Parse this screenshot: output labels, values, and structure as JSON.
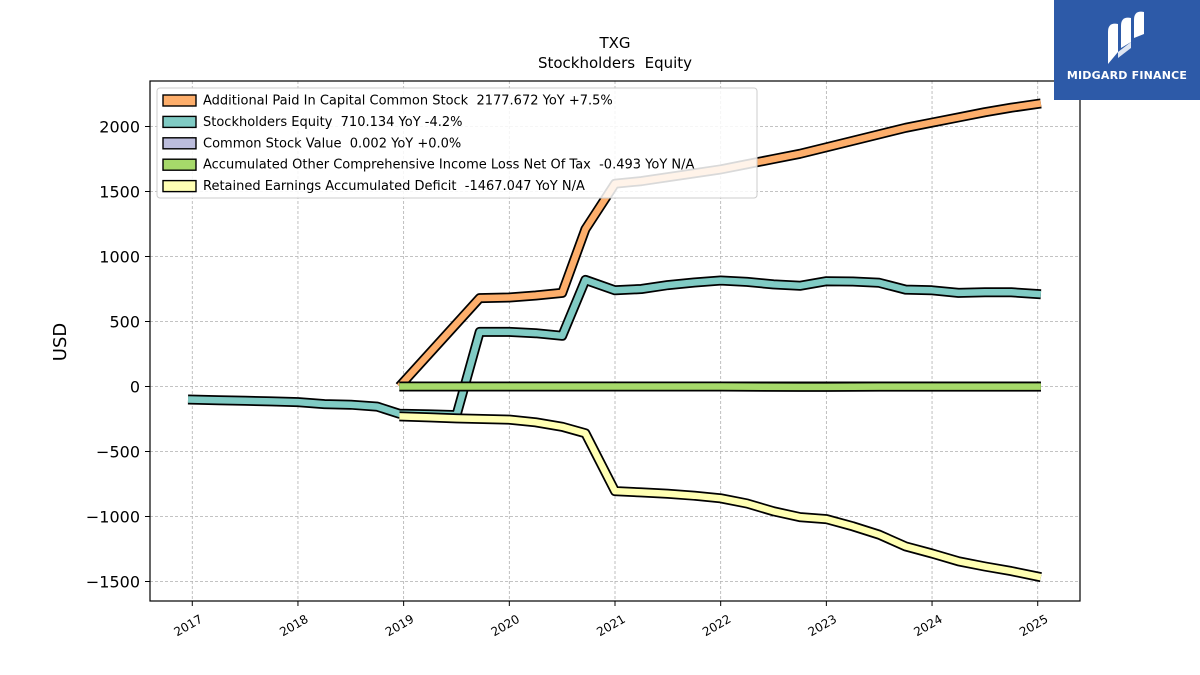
{
  "chart_data": {
    "type": "line",
    "title": "TXG",
    "subtitle": "Stockholders  Equity",
    "ylabel": "USD",
    "xlabel": "",
    "xlim": [
      2016.6,
      2025.4
    ],
    "ylim": [
      -1650,
      2350
    ],
    "x_ticks": [
      "2017",
      "2018",
      "2019",
      "2020",
      "2021",
      "2022",
      "2023",
      "2024",
      "2025"
    ],
    "y_ticks": [
      2000,
      1500,
      1000,
      500,
      0,
      -500,
      -1000,
      -1500
    ],
    "y_tick_labels": [
      "2000",
      "1500",
      "1000",
      "500",
      "0",
      "−500",
      "−1000",
      "−1500"
    ],
    "grid": true,
    "legend_position": "upper-left",
    "series": [
      {
        "name": "Additional Paid In Capital Common Stock  2177.672 YoY +7.5%",
        "color": "#fdae6b",
        "points": [
          [
            2018.96,
            0
          ],
          [
            2019.72,
            680
          ],
          [
            2020.0,
            685
          ],
          [
            2020.25,
            700
          ],
          [
            2020.5,
            720
          ],
          [
            2020.72,
            1210
          ],
          [
            2021.0,
            1560
          ],
          [
            2021.25,
            1580
          ],
          [
            2021.5,
            1610
          ],
          [
            2021.75,
            1640
          ],
          [
            2022.0,
            1670
          ],
          [
            2022.25,
            1710
          ],
          [
            2022.5,
            1750
          ],
          [
            2022.75,
            1790
          ],
          [
            2023.0,
            1840
          ],
          [
            2023.25,
            1890
          ],
          [
            2023.5,
            1940
          ],
          [
            2023.75,
            1990
          ],
          [
            2024.0,
            2030
          ],
          [
            2024.25,
            2070
          ],
          [
            2024.5,
            2110
          ],
          [
            2024.75,
            2145
          ],
          [
            2025.03,
            2177.672
          ]
        ]
      },
      {
        "name": "Stockholders Equity  710.134 YoY -4.2%",
        "color": "#80cbc4",
        "points": [
          [
            2016.96,
            -100
          ],
          [
            2017.25,
            -105
          ],
          [
            2017.5,
            -110
          ],
          [
            2017.75,
            -115
          ],
          [
            2018.0,
            -120
          ],
          [
            2018.25,
            -135
          ],
          [
            2018.5,
            -140
          ],
          [
            2018.75,
            -155
          ],
          [
            2018.96,
            -210
          ],
          [
            2019.25,
            -215
          ],
          [
            2019.5,
            -220
          ],
          [
            2019.72,
            420
          ],
          [
            2020.0,
            420
          ],
          [
            2020.25,
            410
          ],
          [
            2020.5,
            390
          ],
          [
            2020.72,
            820
          ],
          [
            2021.0,
            740
          ],
          [
            2021.25,
            750
          ],
          [
            2021.5,
            780
          ],
          [
            2021.75,
            800
          ],
          [
            2022.0,
            815
          ],
          [
            2022.25,
            805
          ],
          [
            2022.5,
            785
          ],
          [
            2022.75,
            775
          ],
          [
            2023.0,
            810
          ],
          [
            2023.25,
            808
          ],
          [
            2023.5,
            798
          ],
          [
            2023.75,
            745
          ],
          [
            2024.0,
            740
          ],
          [
            2024.25,
            720
          ],
          [
            2024.5,
            725
          ],
          [
            2024.75,
            725
          ],
          [
            2025.03,
            710.134
          ]
        ]
      },
      {
        "name": "Common Stock Value  0.002 YoY +0.0%",
        "color": "#bcbddc",
        "points": [
          [
            2018.96,
            0.002
          ],
          [
            2025.03,
            0.002
          ]
        ]
      },
      {
        "name": "Accumulated Other Comprehensive Income Loss Net Of Tax  -0.493 YoY N/A",
        "color": "#a6d96a",
        "points": [
          [
            2018.96,
            0
          ],
          [
            2022.0,
            0
          ],
          [
            2022.75,
            -3
          ],
          [
            2023.0,
            -3
          ],
          [
            2023.5,
            -1
          ],
          [
            2025.03,
            -0.493
          ]
        ]
      },
      {
        "name": "Retained Earnings Accumulated Deficit  -1467.047 YoY N/A",
        "color": "#ffffb3",
        "points": [
          [
            2018.96,
            -230
          ],
          [
            2019.25,
            -238
          ],
          [
            2019.5,
            -245
          ],
          [
            2019.75,
            -250
          ],
          [
            2020.0,
            -255
          ],
          [
            2020.25,
            -275
          ],
          [
            2020.5,
            -310
          ],
          [
            2020.72,
            -360
          ],
          [
            2021.0,
            -805
          ],
          [
            2021.25,
            -815
          ],
          [
            2021.5,
            -825
          ],
          [
            2021.75,
            -840
          ],
          [
            2022.0,
            -860
          ],
          [
            2022.25,
            -900
          ],
          [
            2022.5,
            -960
          ],
          [
            2022.75,
            -1005
          ],
          [
            2023.0,
            -1020
          ],
          [
            2023.25,
            -1075
          ],
          [
            2023.5,
            -1140
          ],
          [
            2023.75,
            -1230
          ],
          [
            2024.0,
            -1285
          ],
          [
            2024.25,
            -1345
          ],
          [
            2024.5,
            -1385
          ],
          [
            2024.75,
            -1420
          ],
          [
            2025.03,
            -1467.047
          ]
        ]
      }
    ]
  },
  "brand": {
    "name": "MIDGARD FINANCE",
    "background": "#2d5aa8"
  }
}
